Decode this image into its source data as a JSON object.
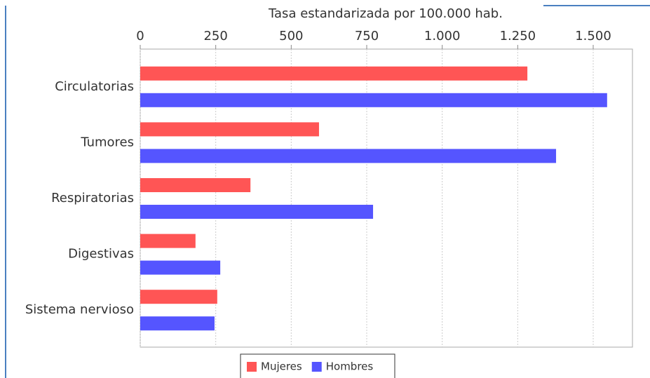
{
  "chart_data": {
    "type": "hbar",
    "x_label": "Tasa estandarizada por 100.000 hab.",
    "categories": [
      "Circulatorias",
      "Tumores",
      "Respiratorias",
      "Digestivas",
      "Sistema nervioso"
    ],
    "series": [
      {
        "name": "Mujeres",
        "color": "#ff5555",
        "values": [
          1282,
          592,
          365,
          183,
          255
        ]
      },
      {
        "name": "Hombres",
        "color": "#5555ff",
        "values": [
          1546,
          1377,
          771,
          265,
          246
        ]
      }
    ],
    "xlim": [
      0,
      1630
    ],
    "xticks": [
      0,
      250,
      500,
      750,
      {
        "value": 1000,
        "label": "1.000"
      },
      {
        "value": 1250,
        "label": "1.250"
      },
      {
        "value": 1500,
        "label": "1.500"
      }
    ],
    "grid": true,
    "legend": "bottom"
  }
}
